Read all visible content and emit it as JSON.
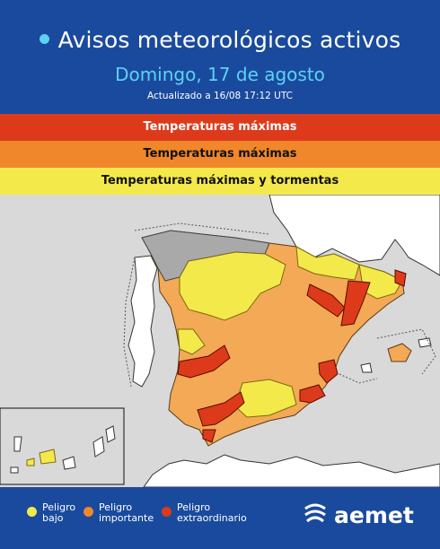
{
  "header": {
    "title": "Avisos meteorológicos activos",
    "date": "Domingo, 17 de agosto",
    "updated": "Actualizado a 16/08  17:12 UTC"
  },
  "bands": [
    {
      "label": "Temperaturas máximas",
      "color": "#dd3a1c"
    },
    {
      "label": "Temperaturas máximas",
      "color": "#f0872b"
    },
    {
      "label": "Temperaturas máximas y tormentas",
      "color": "#f4e94a"
    }
  ],
  "legend": [
    {
      "label": "Peligro bajo",
      "color": "#f4e94a"
    },
    {
      "label": "Peligro importante",
      "color": "#f0872b"
    },
    {
      "label": "Peligro extraordinario",
      "color": "#dd3a1c"
    }
  ],
  "brand": {
    "name": "aemet"
  },
  "colors": {
    "background": "#1a4a9e",
    "accent": "#5dd2f3",
    "land": "#ffffff",
    "sea": "#d9d9d9",
    "no_warning": "#a9a9a9"
  }
}
